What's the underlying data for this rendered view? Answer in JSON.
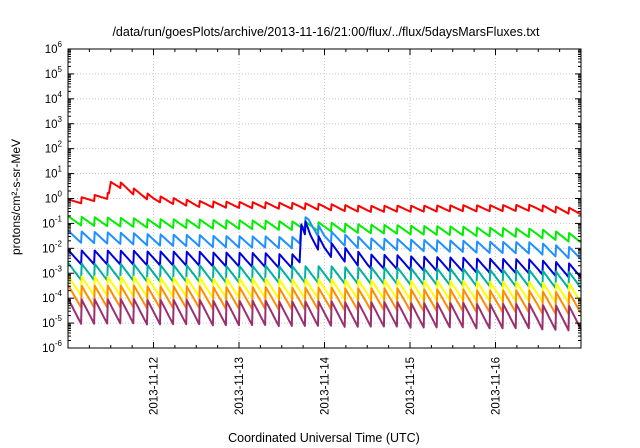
{
  "chart_data": {
    "type": "line",
    "title": "/data/run/goesPlots/archive/2013-11-16/21:00/flux/../flux/5daysMarsFluxes.txt",
    "xlabel": "Coordinated Universal Time (UTC)",
    "ylabel": "protons/cm²-s-sr-MeV",
    "x_range": [
      "2013-11-11T00:00",
      "2013-11-17T00:00"
    ],
    "x_ticks": [
      "2013-11-12",
      "2013-11-13",
      "2013-11-14",
      "2013-11-15",
      "2013-11-16"
    ],
    "y_scale": "log",
    "ylim": [
      1e-06,
      1000000
    ],
    "y_ticks": [
      {
        "base": "10",
        "exp": "-6"
      },
      {
        "base": "10",
        "exp": "-5"
      },
      {
        "base": "10",
        "exp": "-4"
      },
      {
        "base": "10",
        "exp": "-3"
      },
      {
        "base": "10",
        "exp": "-2"
      },
      {
        "base": "10",
        "exp": "-1"
      },
      {
        "base": "10",
        "exp": "0"
      },
      {
        "base": "10",
        "exp": "1"
      },
      {
        "base": "10",
        "exp": "2"
      },
      {
        "base": "10",
        "exp": "3"
      },
      {
        "base": "10",
        "exp": "4"
      },
      {
        "base": "10",
        "exp": "5"
      },
      {
        "base": "10",
        "exp": "6"
      }
    ],
    "grid": true,
    "legend": "none",
    "series": [
      {
        "color": "#ff0000",
        "cycle_period_hours": 3.7,
        "points": [
          [
            "2013-11-11T00:00",
            0.7
          ],
          [
            "2013-11-11T11:30",
            1.3
          ],
          [
            "2013-11-11T12:00",
            4.0
          ],
          [
            "2013-11-11T14:30",
            3.5
          ],
          [
            "2013-11-11T18:00",
            2.0
          ],
          [
            "2013-11-12T00:00",
            1.0
          ],
          [
            "2013-11-12T12:00",
            0.6
          ],
          [
            "2013-11-13T00:00",
            0.55
          ],
          [
            "2013-11-13T17:00",
            0.5
          ],
          [
            "2013-11-14T12:00",
            0.38
          ],
          [
            "2013-11-15T12:00",
            0.4
          ],
          [
            "2013-11-16T12:00",
            0.42
          ],
          [
            "2013-11-16T23:00",
            0.3
          ]
        ]
      },
      {
        "color": "#00ee00",
        "cycle_period_hours": 3.7,
        "points": [
          [
            "2013-11-11T00:00",
            0.13
          ],
          [
            "2013-11-12T00:00",
            0.1
          ],
          [
            "2013-11-13T00:00",
            0.09
          ],
          [
            "2013-11-13T17:00",
            0.08
          ],
          [
            "2013-11-14T12:00",
            0.06
          ],
          [
            "2013-11-15T12:00",
            0.05
          ],
          [
            "2013-11-16T12:00",
            0.04
          ],
          [
            "2013-11-16T23:00",
            0.025
          ]
        ]
      },
      {
        "color": "#1e90ff",
        "cycle_period_hours": 3.7,
        "points": [
          [
            "2013-11-11T00:00",
            0.03
          ],
          [
            "2013-11-12T00:00",
            0.022
          ],
          [
            "2013-11-13T00:00",
            0.018
          ],
          [
            "2013-11-13T17:00",
            0.017
          ],
          [
            "2013-11-13T17:30",
            0.1
          ],
          [
            "2013-11-13T19:30",
            0.11
          ],
          [
            "2013-11-14T00:00",
            0.03
          ],
          [
            "2013-11-14T12:00",
            0.015
          ],
          [
            "2013-11-15T12:00",
            0.012
          ],
          [
            "2013-11-16T12:00",
            0.01
          ],
          [
            "2013-11-16T23:00",
            0.006
          ]
        ]
      },
      {
        "color": "#0000dd",
        "cycle_period_hours": 3.7,
        "points": [
          [
            "2013-11-11T00:00",
            0.0045
          ],
          [
            "2013-11-12T00:00",
            0.004
          ],
          [
            "2013-11-13T00:00",
            0.0035
          ],
          [
            "2013-11-13T17:00",
            0.003
          ],
          [
            "2013-11-13T17:30",
            0.12
          ],
          [
            "2013-11-13T20:00",
            0.03
          ],
          [
            "2013-11-14T00:00",
            0.01
          ],
          [
            "2013-11-14T12:00",
            0.003
          ],
          [
            "2013-11-15T12:00",
            0.0022
          ],
          [
            "2013-11-16T12:00",
            0.0018
          ],
          [
            "2013-11-16T23:00",
            0.0012
          ]
        ]
      },
      {
        "color": "#00b0a0",
        "cycle_period_hours": 3.7,
        "points": [
          [
            "2013-11-11T00:00",
            0.0012
          ],
          [
            "2013-11-12T00:00",
            0.001
          ],
          [
            "2013-11-13T00:00",
            0.0009
          ],
          [
            "2013-11-13T17:00",
            0.0009
          ],
          [
            "2013-11-14T12:00",
            0.0008
          ],
          [
            "2013-11-15T12:00",
            0.0007
          ],
          [
            "2013-11-16T12:00",
            0.0006
          ],
          [
            "2013-11-16T23:00",
            0.0005
          ]
        ]
      },
      {
        "color": "#ffff00",
        "cycle_period_hours": 3.7,
        "points": [
          [
            "2013-11-11T00:00",
            0.00032
          ],
          [
            "2013-11-12T00:00",
            0.00028
          ],
          [
            "2013-11-13T00:00",
            0.00025
          ],
          [
            "2013-11-14T12:00",
            0.00022
          ],
          [
            "2013-11-15T12:00",
            0.0002
          ],
          [
            "2013-11-16T12:00",
            0.00018
          ],
          [
            "2013-11-16T23:00",
            0.00015
          ]
        ]
      },
      {
        "color": "#ff8c00",
        "cycle_period_hours": 3.7,
        "points": [
          [
            "2013-11-11T00:00",
            0.00012
          ],
          [
            "2013-11-12T00:00",
            0.00011
          ],
          [
            "2013-11-13T00:00",
            0.0001
          ],
          [
            "2013-11-14T12:00",
            9e-05
          ],
          [
            "2013-11-15T12:00",
            8e-05
          ],
          [
            "2013-11-16T12:00",
            7e-05
          ],
          [
            "2013-11-16T23:00",
            6e-05
          ]
        ]
      },
      {
        "color": "#9b3070",
        "cycle_period_hours": 3.7,
        "points": [
          [
            "2013-11-11T00:00",
            3e-05
          ],
          [
            "2013-11-12T00:00",
            2.8e-05
          ],
          [
            "2013-11-13T00:00",
            2.5e-05
          ],
          [
            "2013-11-14T12:00",
            2.2e-05
          ],
          [
            "2013-11-15T12:00",
            2e-05
          ],
          [
            "2013-11-16T12:00",
            1.8e-05
          ],
          [
            "2013-11-16T23:00",
            1.5e-05
          ]
        ]
      }
    ]
  }
}
